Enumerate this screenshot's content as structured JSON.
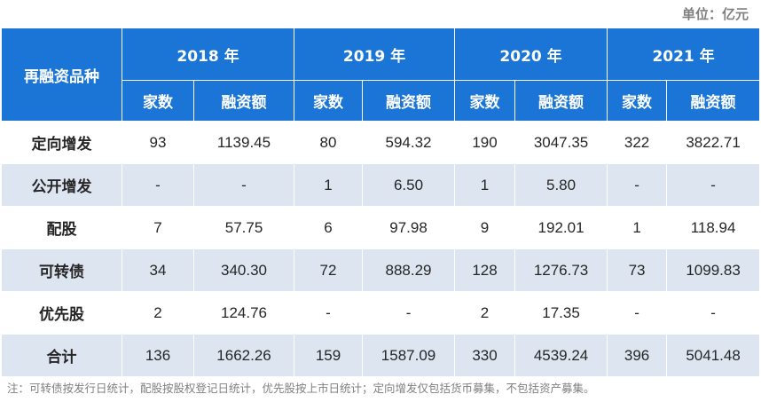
{
  "unit_label": "单位：亿元",
  "header": {
    "corner": "再融资品种",
    "years": [
      "2018 年",
      "2019 年",
      "2020 年",
      "2021 年"
    ],
    "sub_count": "家数",
    "sub_amount": "融资额"
  },
  "rows": [
    {
      "label": "定向增发",
      "cells": [
        "93",
        "1139.45",
        "80",
        "594.32",
        "190",
        "3047.35",
        "322",
        "3822.71"
      ]
    },
    {
      "label": "公开增发",
      "cells": [
        "-",
        "-",
        "1",
        "6.50",
        "1",
        "5.80",
        "-",
        "-"
      ]
    },
    {
      "label": "配股",
      "cells": [
        "7",
        "57.75",
        "6",
        "97.98",
        "9",
        "192.01",
        "1",
        "118.94"
      ]
    },
    {
      "label": "可转债",
      "cells": [
        "34",
        "340.30",
        "72",
        "888.29",
        "128",
        "1276.73",
        "73",
        "1099.83"
      ]
    },
    {
      "label": "优先股",
      "cells": [
        "2",
        "124.76",
        "-",
        "-",
        "2",
        "17.35",
        "-",
        "-"
      ]
    },
    {
      "label": "合计",
      "cells": [
        "136",
        "1662.26",
        "159",
        "1587.09",
        "330",
        "4539.24",
        "396",
        "5041.48"
      ]
    }
  ],
  "note": "注：可转债按发行日统计，配股按股权登记日统计，优先股按上市日统计；定向增发仅包括货币募集，不包括资产募集。"
}
